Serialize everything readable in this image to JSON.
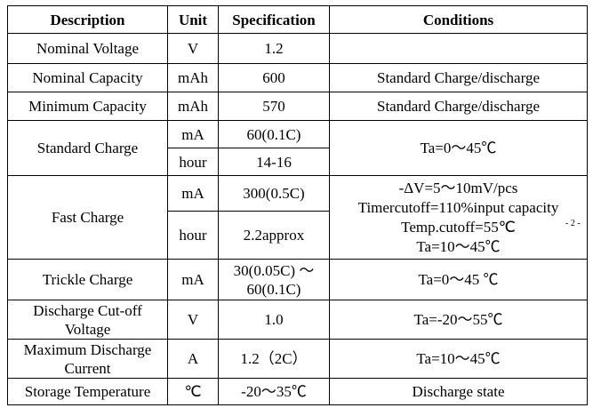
{
  "header": [
    "Description",
    "Unit",
    "Specification",
    "Conditions"
  ],
  "rows": [
    {
      "description": "Nominal Voltage",
      "unit": "V",
      "specification": "1.2"
    },
    {
      "description": "Nominal Capacity",
      "unit": "mAh",
      "specification": "600",
      "conditions": "Standard Charge/discharge"
    },
    {
      "description": "Minimum Capacity",
      "unit": "mAh",
      "specification": "570",
      "conditions": "Standard Charge/discharge"
    },
    {
      "description": "Standard Charge",
      "parts": [
        {
          "unit": "mA",
          "specification": "60(0.1C)"
        },
        {
          "unit": "hour",
          "specification": "14-16"
        }
      ],
      "conditions": "Ta=0～45℃"
    },
    {
      "description": "Fast Charge",
      "parts": [
        {
          "unit": "mA",
          "specification": "300(0.5C)"
        },
        {
          "unit": "hour",
          "specification": "2.2approx"
        }
      ],
      "conditions": [
        "-ΔV=5～10mV/pcs",
        "Timercutoff=110%input capacity",
        "Temp.cutoff=55℃",
        "Ta=10～45℃"
      ]
    },
    {
      "description": "Trickle Charge",
      "unit": "mA",
      "specification": "30(0.05C) ～ 60(0.1C)",
      "conditions": "Ta=0～45 ℃"
    },
    {
      "description": "Discharge Cut-off Voltage",
      "unit": "V",
      "specification": "1.0",
      "conditions": "Ta=-20～55℃"
    },
    {
      "description": "Maximum Discharge Current",
      "unit": "A",
      "specification": "1.2（2C）",
      "conditions": "Ta=10～45℃"
    },
    {
      "description": "Storage Temperature",
      "unit": "℃",
      "specification": "-20～35℃",
      "conditions": "Discharge state"
    }
  ],
  "page_number": "- 2 -"
}
